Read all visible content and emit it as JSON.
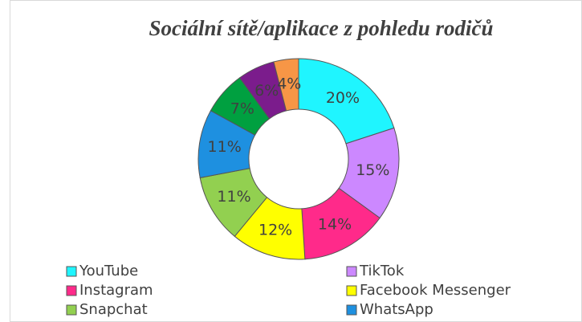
{
  "chart_data": {
    "type": "donut",
    "title": "Sociální sítě/aplikace z pohledu rodičů",
    "categories": [
      "YouTube",
      "TikTok",
      "Instagram",
      "Facebook Messenger",
      "Snapchat",
      "WhatsApp",
      null,
      null,
      null
    ],
    "values": [
      20,
      15,
      14,
      12,
      11,
      11,
      7,
      6,
      4
    ],
    "value_labels": [
      "20%",
      "15%",
      "14%",
      "12%",
      "11%",
      "11%",
      "7%",
      "6%",
      "4%"
    ],
    "colors": [
      "#1ff5ff",
      "#cc88ff",
      "#ff2a8a",
      "#ffff00",
      "#92d050",
      "#1e90e0",
      "#00a040",
      "#7b1c8c",
      "#f79646"
    ],
    "legend": "bottom"
  }
}
